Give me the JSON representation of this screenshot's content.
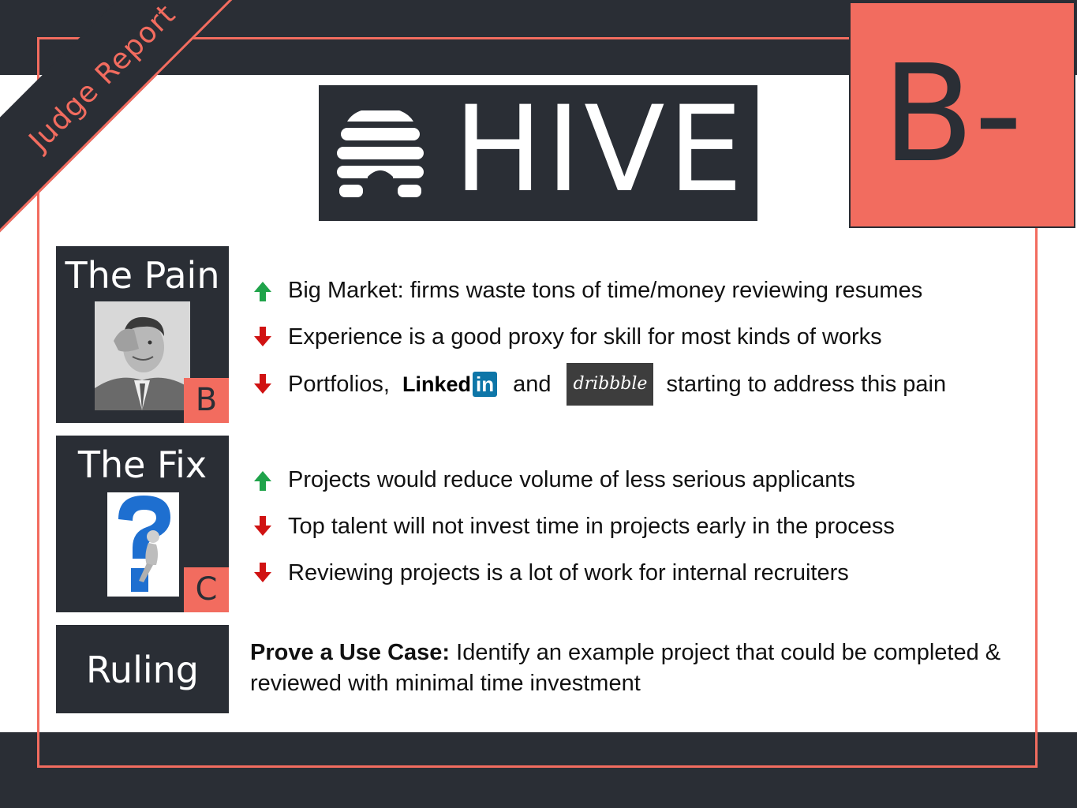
{
  "banner": {
    "label": "Judge Report"
  },
  "logo": {
    "text": "HIVE",
    "icon": "beehive-icon"
  },
  "grade": "B-",
  "sections": {
    "pain": {
      "title": "The Pain",
      "score": "B",
      "image": "stressed-man-image",
      "bullets": [
        {
          "direction": "up",
          "text": "Big Market: firms waste tons of  time/money reviewing resumes"
        },
        {
          "direction": "down",
          "text": "Experience is a good proxy for skill for most kinds of works"
        },
        {
          "direction": "down",
          "prefix": "Portfolios,",
          "middle": "and",
          "suffix": "starting to address this pain",
          "logos": [
            "Linked",
            "in",
            "dribbble"
          ]
        }
      ]
    },
    "fix": {
      "title": "The Fix",
      "score": "C",
      "image": "question-mark-figure-image",
      "bullets": [
        {
          "direction": "up",
          "text": "Projects would reduce volume of less serious applicants"
        },
        {
          "direction": "down",
          "text": "Top talent will not invest time in projects early in the process"
        },
        {
          "direction": "down",
          "text": "Reviewing projects is a lot of work for internal recruiters"
        }
      ]
    },
    "ruling": {
      "title": "Ruling",
      "bold": "Prove a Use Case:",
      "text": " Identify an example project that could be completed & reviewed with minimal time investment"
    }
  },
  "colors": {
    "dark": "#2a2e35",
    "accent": "#f26c5f",
    "up": "#1fa34a",
    "down": "#d01212"
  }
}
